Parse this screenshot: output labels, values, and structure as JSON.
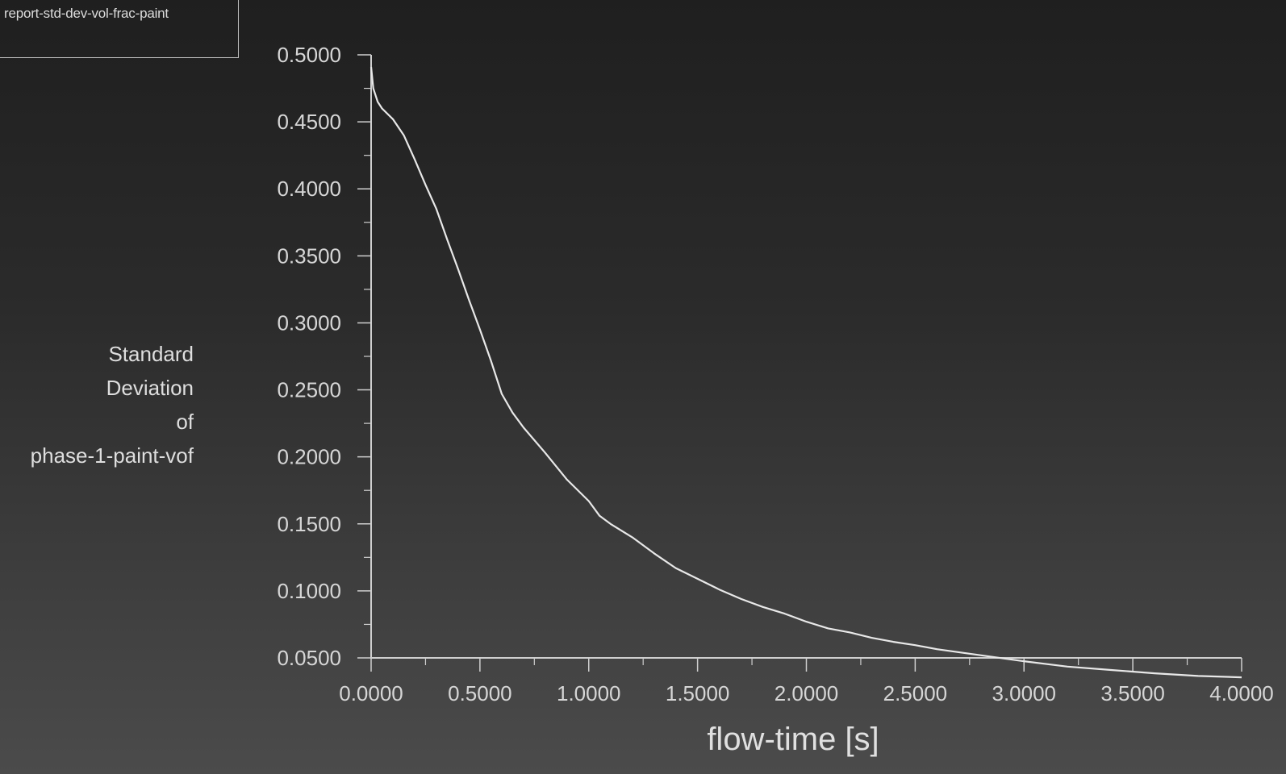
{
  "legend": {
    "label": "report-std-dev-vol-frac-paint"
  },
  "chart_data": {
    "type": "line",
    "title": "",
    "xlabel": "flow-time [s]",
    "ylabel_lines": [
      "Standard",
      "Deviation",
      "of",
      "phase-1-paint-vof"
    ],
    "xlim": [
      0,
      4
    ],
    "ylim": [
      0.05,
      0.5
    ],
    "x_ticks": [
      "0.0000",
      "0.5000",
      "1.0000",
      "1.5000",
      "2.0000",
      "2.5000",
      "3.0000",
      "3.5000",
      "4.0000"
    ],
    "y_ticks": [
      "0.0500",
      "0.1000",
      "0.1500",
      "0.2000",
      "0.2500",
      "0.3000",
      "0.3500",
      "0.4000",
      "0.4500",
      "0.5000"
    ],
    "grid": false,
    "series": [
      {
        "name": "report-std-dev-vol-frac-paint",
        "x": [
          0.0,
          0.01,
          0.03,
          0.05,
          0.1,
          0.15,
          0.2,
          0.25,
          0.3,
          0.35,
          0.4,
          0.45,
          0.5,
          0.55,
          0.6,
          0.65,
          0.7,
          0.8,
          0.9,
          1.0,
          1.05,
          1.1,
          1.2,
          1.3,
          1.4,
          1.5,
          1.6,
          1.7,
          1.8,
          1.9,
          2.0,
          2.1,
          2.2,
          2.3,
          2.4,
          2.5,
          2.6,
          2.8,
          3.0,
          3.2,
          3.4,
          3.6,
          3.8,
          4.0
        ],
        "y": [
          0.491,
          0.475,
          0.465,
          0.46,
          0.452,
          0.44,
          0.422,
          0.403,
          0.385,
          0.362,
          0.34,
          0.317,
          0.295,
          0.272,
          0.247,
          0.233,
          0.222,
          0.203,
          0.183,
          0.167,
          0.156,
          0.15,
          0.14,
          0.128,
          0.117,
          0.109,
          0.101,
          0.094,
          0.088,
          0.083,
          0.077,
          0.072,
          0.069,
          0.065,
          0.062,
          0.0595,
          0.0565,
          0.052,
          0.0475,
          0.0435,
          0.041,
          0.0385,
          0.0365,
          0.0355
        ]
      }
    ],
    "line_color": "#e8e8e8",
    "axis_color": "#cfcfcf"
  }
}
